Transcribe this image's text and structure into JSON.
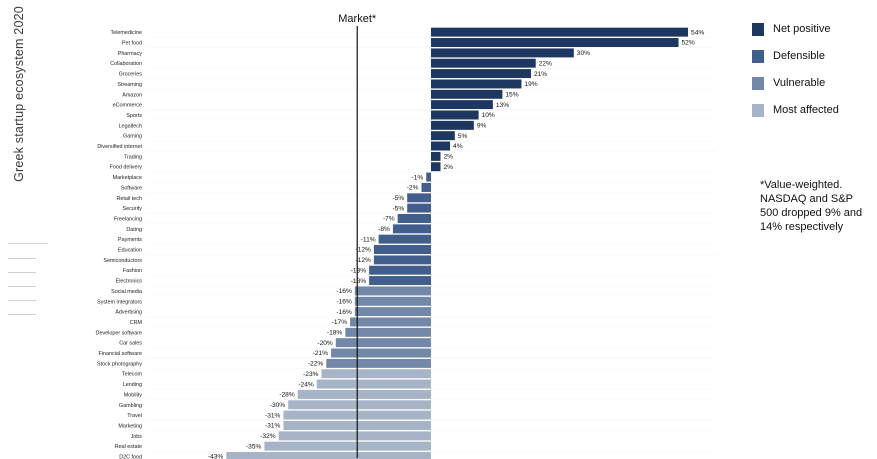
{
  "page": {
    "side_title": "Greek startup ecosystem 2020",
    "footnote": "*Value-weighted. NASDAQ and S&P 500 dropped 9% and 14% respectively"
  },
  "legend": [
    {
      "label": "Net positive",
      "color": "#1e3760"
    },
    {
      "label": "Defensible",
      "color": "#425e8c"
    },
    {
      "label": "Vulnerable",
      "color": "#7388a8"
    },
    {
      "label": "Most affected",
      "color": "#a7b4c7"
    }
  ],
  "chart_data": {
    "type": "bar",
    "orientation": "horizontal",
    "title": "",
    "xlabel": "",
    "ylabel": "",
    "xlim": [
      -50,
      60
    ],
    "unit": "%",
    "reference_line": {
      "label": "Market*",
      "value": -15.5
    },
    "categories": [
      "Telemedicine",
      "Pet food",
      "Pharmacy",
      "Collaboration",
      "Groceries",
      "Streaming",
      "Amazon",
      "eCommerce",
      "Sports",
      "Legaltech",
      "Gaming",
      "Diversified internet",
      "Trading",
      "Food delivery",
      "Marketplace",
      "Software",
      "Retail tech",
      "Security",
      "Freelancing",
      "Dating",
      "Payments",
      "Education",
      "Semiconductors",
      "Fashion",
      "Electronics",
      "Social media",
      "System integrators",
      "Advertising",
      "CRM",
      "Developer software",
      "Car sales",
      "Financial software",
      "Stock photography",
      "Telecom",
      "Lending",
      "Mobility",
      "Gambling",
      "Travel",
      "Marketing",
      "Jobs",
      "Real estate",
      "D2C food"
    ],
    "values": [
      54,
      52,
      30,
      22,
      21,
      19,
      15,
      13,
      10,
      9,
      5,
      4,
      2,
      2,
      -1,
      -2,
      -5,
      -5,
      -7,
      -8,
      -11,
      -12,
      -12,
      -13,
      -13,
      -16,
      -16,
      -16,
      -17,
      -18,
      -20,
      -21,
      -22,
      -23,
      -24,
      -28,
      -30,
      -31,
      -31,
      -32,
      -35,
      -43
    ],
    "groups": [
      "Net positive",
      "Net positive",
      "Net positive",
      "Net positive",
      "Net positive",
      "Net positive",
      "Net positive",
      "Net positive",
      "Net positive",
      "Net positive",
      "Net positive",
      "Net positive",
      "Net positive",
      "Net positive",
      "Defensible",
      "Defensible",
      "Defensible",
      "Defensible",
      "Defensible",
      "Defensible",
      "Defensible",
      "Defensible",
      "Defensible",
      "Defensible",
      "Defensible",
      "Vulnerable",
      "Vulnerable",
      "Vulnerable",
      "Vulnerable",
      "Vulnerable",
      "Vulnerable",
      "Vulnerable",
      "Vulnerable",
      "Most affected",
      "Most affected",
      "Most affected",
      "Most affected",
      "Most affected",
      "Most affected",
      "Most affected",
      "Most affected",
      "Most affected"
    ]
  }
}
